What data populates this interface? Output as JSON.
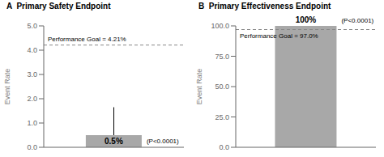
{
  "chart_data": [
    {
      "type": "bar",
      "title": "A  Primary Safety Endpoint",
      "categories": [
        null
      ],
      "values": [
        0.5
      ],
      "value_labels": [
        "0.5%"
      ],
      "data_labels": true,
      "color": "#a8a8a8",
      "error_high": [
        1.65
      ],
      "ylabel": "Event Rate",
      "ylim": [
        0,
        5.0
      ],
      "yticks": [
        {
          "value": 0.0,
          "label": "0.0"
        },
        {
          "value": 1.0,
          "label": "1.0"
        },
        {
          "value": 2.0,
          "label": "2.0"
        },
        {
          "value": 3.0,
          "label": "3.0"
        },
        {
          "value": 4.0,
          "label": "4.0"
        },
        {
          "value": 5.0,
          "label": "5.0"
        }
      ],
      "performance_goal": {
        "value": 4.21,
        "label": "Performance Goal = 4.21%",
        "line_style": "dashed"
      },
      "annotations": [
        "(P<0.0001)"
      ]
    },
    {
      "type": "bar",
      "title": "B  Primary Effectiveness Endpoint",
      "categories": [
        null
      ],
      "values": [
        100
      ],
      "value_labels": [
        "100%"
      ],
      "data_labels": true,
      "color": "#a8a8a8",
      "ylabel": "Event Rate",
      "ylim": [
        0,
        100
      ],
      "yticks": [
        {
          "value": 0.0,
          "label": "0.0"
        },
        {
          "value": 25.0,
          "label": "25.0"
        },
        {
          "value": 50.0,
          "label": "50.0"
        },
        {
          "value": 75.0,
          "label": "75.0"
        },
        {
          "value": 100.0,
          "label": "100.0"
        }
      ],
      "performance_goal": {
        "value": 97.0,
        "label": "Performance Goal = 97.0%",
        "line_style": "dashed"
      },
      "annotations": [
        "(P<0.0001)"
      ]
    }
  ]
}
